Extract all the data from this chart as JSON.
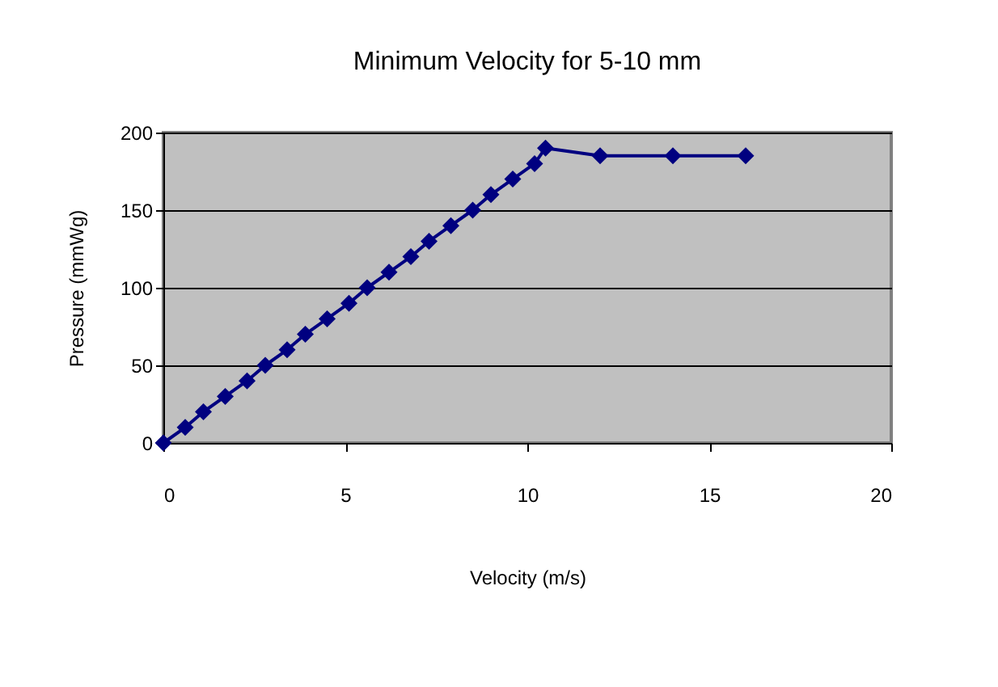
{
  "chart_data": {
    "type": "line",
    "title": "Minimum Velocity for 5-10 mm",
    "xlabel": "Velocity (m/s)",
    "ylabel": "Pressure (mmWg)",
    "x": [
      0,
      0.6,
      1.1,
      1.7,
      2.3,
      2.8,
      3.4,
      3.9,
      4.5,
      5.1,
      5.6,
      6.2,
      6.8,
      7.3,
      7.9,
      8.5,
      9.0,
      9.6,
      10.2,
      10.5,
      12,
      14,
      16
    ],
    "series": [
      {
        "color": "#000080",
        "values": [
          0,
          10,
          20,
          30,
          40,
          50,
          60,
          70,
          80,
          90,
          100,
          110,
          120,
          130,
          140,
          150,
          160,
          170,
          180,
          190,
          185,
          185,
          185
        ]
      }
    ],
    "xlim": [
      0,
      20
    ],
    "xticks": [
      0,
      5,
      10,
      15,
      20
    ],
    "ylim": [
      0,
      200
    ],
    "yticks": [
      0,
      50,
      100,
      150,
      200
    ],
    "grid": "y",
    "marker": "diamond",
    "line_style": "solid"
  }
}
